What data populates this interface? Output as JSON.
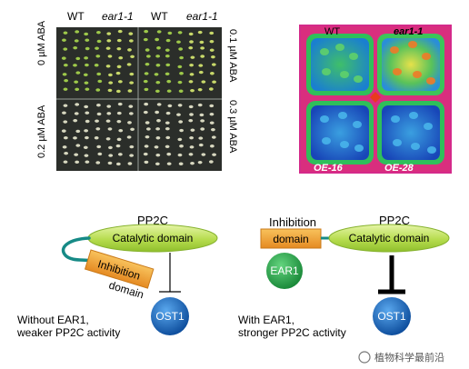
{
  "left_panel": {
    "col_headers": [
      "WT",
      "ear1-1",
      "WT",
      "ear1-1"
    ],
    "row_labels_left": [
      "0 µM ABA",
      "0.2 µM ABA"
    ],
    "row_labels_right": [
      "0.1 µM ABA",
      "0.3 µM ABA"
    ]
  },
  "right_panel": {
    "labels_top": [
      "WT",
      "ear1-1"
    ],
    "labels_bottom": [
      "OE-16",
      "OE-28"
    ]
  },
  "model_without": {
    "pp2c_label": "PP2C",
    "catalytic_label": "Catalytic domain",
    "inhibition_label_1": "Inhibition",
    "inhibition_label_2": "domain",
    "ost1_label": "OST1",
    "caption_line1": "Without EAR1,",
    "caption_line2": "weaker PP2C activity"
  },
  "model_with": {
    "inhibition_label_1": "Inhibition",
    "inhibition_label_2": "domain",
    "pp2c_label": "PP2C",
    "catalytic_label": "Catalytic domain",
    "ear1_label": "EAR1",
    "ost1_label": "OST1",
    "caption_line1": "With EAR1,",
    "caption_line2": "stronger PP2C activity"
  },
  "watermark": "植物科学最前沿",
  "colors": {
    "catalytic_green": "#b6dc4e",
    "inhibition_orange": "#f2a23a",
    "ost1_blue": "#1a6fc4",
    "ear1_green": "#2aa84a",
    "heat_magenta": "#d42a8a"
  }
}
